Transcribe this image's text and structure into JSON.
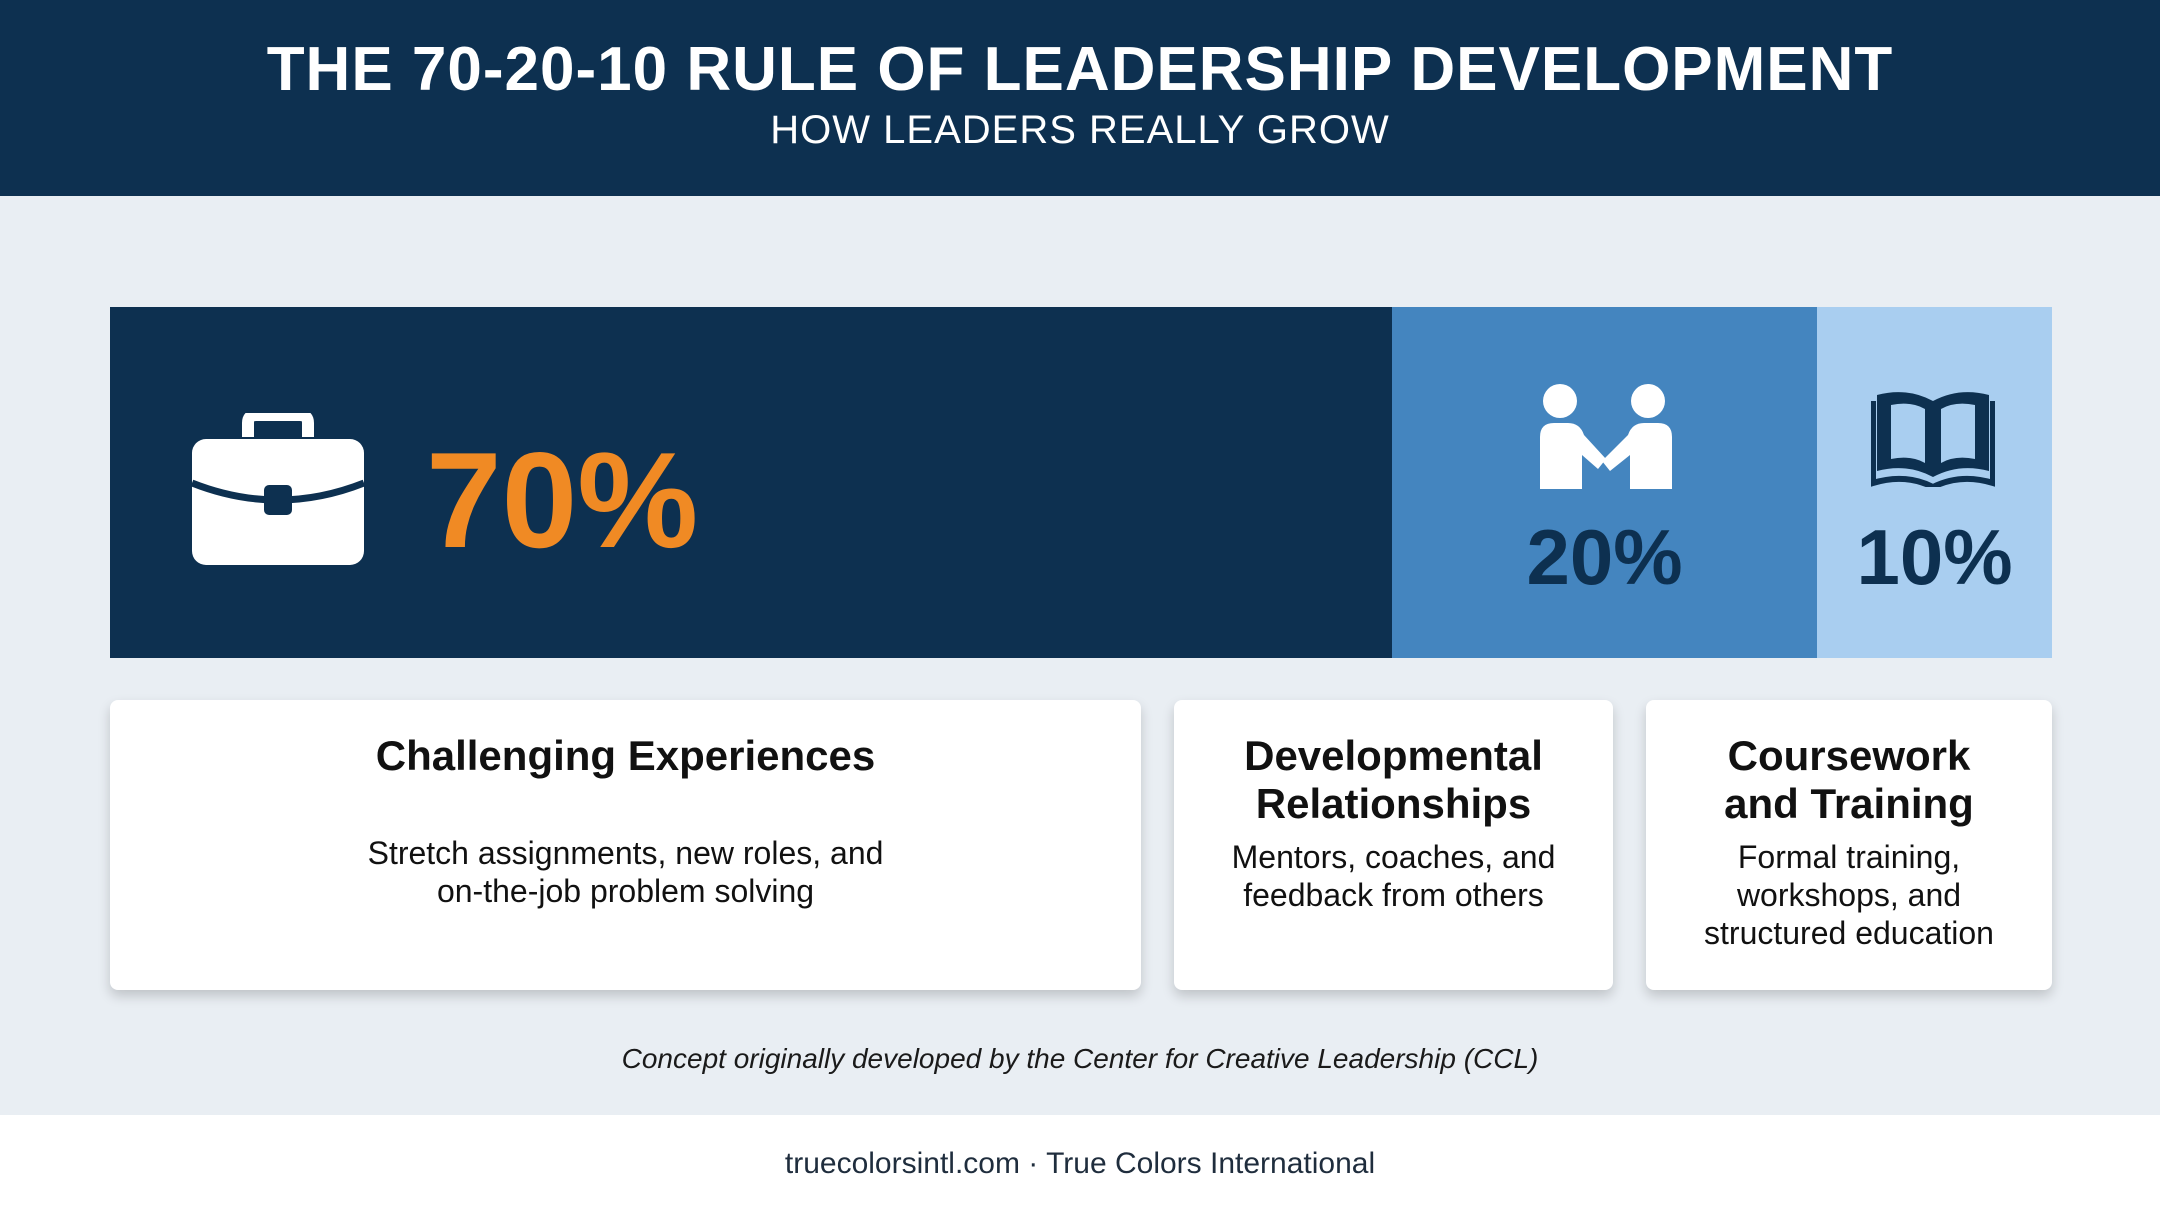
{
  "header": {
    "title": "THE 70-20-10 RULE OF LEADERSHIP DEVELOPMENT",
    "subtitle": "HOW LEADERS REALLY GROW"
  },
  "colors": {
    "navy": "#0d3050",
    "mid_blue": "#4485bf",
    "light_blue": "#a9cef0",
    "orange": "#f08a24"
  },
  "chart_data": {
    "type": "bar",
    "categories": [
      "Challenging Experiences",
      "Developmental Relationships",
      "Coursework and Training"
    ],
    "values": [
      70,
      20,
      10
    ],
    "labels": [
      "70%",
      "20%",
      "10%"
    ],
    "icons": [
      "briefcase-icon",
      "handshake-icon",
      "open-book-icon"
    ]
  },
  "cards": [
    {
      "title": [
        "Challenging Experiences"
      ],
      "desc": [
        "Stretch assignments, new roles, and",
        "on-the-job problem solving"
      ]
    },
    {
      "title": [
        "Developmental",
        "Relationships"
      ],
      "desc": [
        "Mentors, coaches, and",
        "feedback from others"
      ]
    },
    {
      "title": [
        "Coursework",
        "and Training"
      ],
      "desc": [
        "Formal training,",
        "workshops, and",
        "structured education"
      ]
    }
  ],
  "note": "Concept originally developed by the Center for Creative Leadership (CCL)",
  "footer": "truecolorsintl.com · True Colors International"
}
